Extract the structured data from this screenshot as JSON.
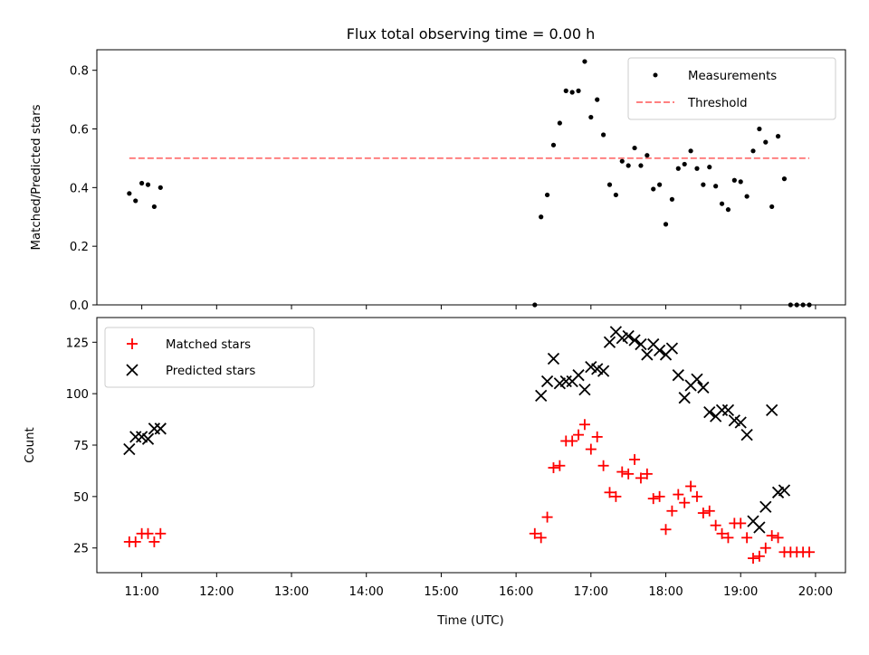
{
  "colors": {
    "measurement": "#000000",
    "threshold": "#ff8080",
    "matched": "#ff0000",
    "predicted": "#000000"
  },
  "chart_data": [
    {
      "type": "scatter",
      "title": "Flux total observing time = 0.00 h",
      "xlabel": "",
      "ylabel": "Matched/Predicted stars",
      "xlim": [
        "10:24",
        "20:24"
      ],
      "ylim": [
        0,
        0.87
      ],
      "yticks": [
        "0.0",
        "0.2",
        "0.4",
        "0.6",
        "0.8"
      ],
      "legend": {
        "position": "top-right"
      },
      "series": [
        {
          "name": "Measurements",
          "marker": "dot",
          "points": [
            [
              "10:50",
              0.38
            ],
            [
              "10:55",
              0.355
            ],
            [
              "11:00",
              0.415
            ],
            [
              "11:05",
              0.41
            ],
            [
              "11:10",
              0.335
            ],
            [
              "11:15",
              0.4
            ],
            [
              "16:15",
              0.0
            ],
            [
              "16:20",
              0.3
            ],
            [
              "16:25",
              0.375
            ],
            [
              "16:30",
              0.545
            ],
            [
              "16:35",
              0.62
            ],
            [
              "16:40",
              0.73
            ],
            [
              "16:45",
              0.725
            ],
            [
              "16:50",
              0.73
            ],
            [
              "16:55",
              0.83
            ],
            [
              "17:00",
              0.64
            ],
            [
              "17:05",
              0.7
            ],
            [
              "17:10",
              0.58
            ],
            [
              "17:15",
              0.41
            ],
            [
              "17:20",
              0.375
            ],
            [
              "17:25",
              0.49
            ],
            [
              "17:30",
              0.475
            ],
            [
              "17:35",
              0.535
            ],
            [
              "17:40",
              0.475
            ],
            [
              "17:45",
              0.51
            ],
            [
              "17:50",
              0.395
            ],
            [
              "17:55",
              0.41
            ],
            [
              "18:00",
              0.275
            ],
            [
              "18:05",
              0.36
            ],
            [
              "18:10",
              0.465
            ],
            [
              "18:15",
              0.48
            ],
            [
              "18:20",
              0.525
            ],
            [
              "18:25",
              0.465
            ],
            [
              "18:30",
              0.41
            ],
            [
              "18:35",
              0.47
            ],
            [
              "18:40",
              0.405
            ],
            [
              "18:45",
              0.345
            ],
            [
              "18:50",
              0.325
            ],
            [
              "18:55",
              0.425
            ],
            [
              "19:00",
              0.42
            ],
            [
              "19:05",
              0.37
            ],
            [
              "19:10",
              0.525
            ],
            [
              "19:15",
              0.6
            ],
            [
              "19:20",
              0.555
            ],
            [
              "19:25",
              0.335
            ],
            [
              "19:30",
              0.575
            ],
            [
              "19:35",
              0.43
            ],
            [
              "19:40",
              0.0
            ],
            [
              "19:45",
              0.0
            ],
            [
              "19:50",
              0.0
            ],
            [
              "19:55",
              0.0
            ]
          ]
        },
        {
          "name": "Threshold",
          "marker": "dashed-line",
          "points": [
            [
              "10:50",
              0.5
            ],
            [
              "19:55",
              0.5
            ]
          ]
        }
      ]
    },
    {
      "type": "scatter",
      "title": "",
      "xlabel": "Time (UTC)",
      "ylabel": "Count",
      "xlim": [
        "10:24",
        "20:24"
      ],
      "xticks": [
        "11:00",
        "12:00",
        "13:00",
        "14:00",
        "15:00",
        "16:00",
        "17:00",
        "18:00",
        "19:00",
        "20:00"
      ],
      "ylim": [
        13,
        137
      ],
      "yticks": [
        "25",
        "50",
        "75",
        "100",
        "125"
      ],
      "legend": {
        "position": "top-left"
      },
      "series": [
        {
          "name": "Matched stars",
          "marker": "plus",
          "points": [
            [
              "10:50",
              28
            ],
            [
              "10:55",
              28
            ],
            [
              "11:00",
              32
            ],
            [
              "11:05",
              32
            ],
            [
              "11:10",
              28
            ],
            [
              "11:15",
              32
            ],
            [
              "16:15",
              32
            ],
            [
              "16:20",
              30
            ],
            [
              "16:25",
              40
            ],
            [
              "16:30",
              64
            ],
            [
              "16:35",
              65
            ],
            [
              "16:40",
              77
            ],
            [
              "16:45",
              77
            ],
            [
              "16:50",
              80
            ],
            [
              "16:55",
              85
            ],
            [
              "17:00",
              73
            ],
            [
              "17:05",
              79
            ],
            [
              "17:10",
              65
            ],
            [
              "17:15",
              52
            ],
            [
              "17:20",
              50
            ],
            [
              "17:25",
              62
            ],
            [
              "17:30",
              61
            ],
            [
              "17:35",
              68
            ],
            [
              "17:40",
              59
            ],
            [
              "17:45",
              61
            ],
            [
              "17:50",
              49
            ],
            [
              "17:55",
              50
            ],
            [
              "18:00",
              34
            ],
            [
              "18:05",
              43
            ],
            [
              "18:10",
              51
            ],
            [
              "18:15",
              47
            ],
            [
              "18:20",
              55
            ],
            [
              "18:25",
              50
            ],
            [
              "18:30",
              42
            ],
            [
              "18:35",
              43
            ],
            [
              "18:40",
              36
            ],
            [
              "18:45",
              32
            ],
            [
              "18:50",
              30
            ],
            [
              "18:55",
              37
            ],
            [
              "19:00",
              37
            ],
            [
              "19:05",
              30
            ],
            [
              "19:10",
              20
            ],
            [
              "19:15",
              21
            ],
            [
              "19:20",
              25
            ],
            [
              "19:25",
              31
            ],
            [
              "19:30",
              30
            ],
            [
              "19:35",
              23
            ],
            [
              "19:40",
              23
            ],
            [
              "19:45",
              23
            ],
            [
              "19:50",
              23
            ],
            [
              "19:55",
              23
            ]
          ]
        },
        {
          "name": "Predicted stars",
          "marker": "cross",
          "points": [
            [
              "10:50",
              73
            ],
            [
              "10:55",
              79
            ],
            [
              "11:00",
              79
            ],
            [
              "11:05",
              78
            ],
            [
              "11:10",
              83
            ],
            [
              "11:15",
              83
            ],
            [
              "16:20",
              99
            ],
            [
              "16:25",
              106
            ],
            [
              "16:30",
              117
            ],
            [
              "16:35",
              105
            ],
            [
              "16:40",
              106
            ],
            [
              "16:45",
              106
            ],
            [
              "16:50",
              109
            ],
            [
              "16:55",
              102
            ],
            [
              "17:00",
              113
            ],
            [
              "17:05",
              112
            ],
            [
              "17:10",
              111
            ],
            [
              "17:15",
              125
            ],
            [
              "17:20",
              130
            ],
            [
              "17:25",
              127
            ],
            [
              "17:30",
              128
            ],
            [
              "17:35",
              126
            ],
            [
              "17:40",
              124
            ],
            [
              "17:45",
              119
            ],
            [
              "17:50",
              124
            ],
            [
              "17:55",
              121
            ],
            [
              "18:00",
              119
            ],
            [
              "18:05",
              122
            ],
            [
              "18:10",
              109
            ],
            [
              "18:15",
              98
            ],
            [
              "18:20",
              104
            ],
            [
              "18:25",
              107
            ],
            [
              "18:30",
              103
            ],
            [
              "18:35",
              91
            ],
            [
              "18:40",
              89
            ],
            [
              "18:45",
              92
            ],
            [
              "18:50",
              92
            ],
            [
              "18:55",
              87
            ],
            [
              "19:00",
              86
            ],
            [
              "19:05",
              80
            ],
            [
              "19:10",
              38
            ],
            [
              "19:15",
              35
            ],
            [
              "19:20",
              45
            ],
            [
              "19:25",
              92
            ],
            [
              "19:30",
              52
            ],
            [
              "19:35",
              53
            ]
          ]
        }
      ]
    }
  ]
}
